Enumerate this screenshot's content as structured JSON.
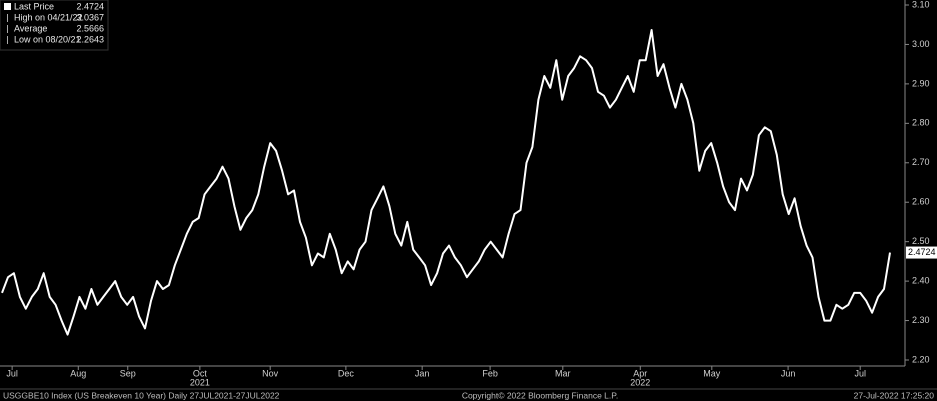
{
  "chart_data": {
    "type": "line",
    "legend": [
      {
        "label": "Last Price",
        "value": 2.4724
      },
      {
        "label": "High on 04/21/22",
        "value": 3.0367
      },
      {
        "label": "Average",
        "value": 2.5666
      },
      {
        "label": "Low on 08/20/21",
        "value": 2.2643
      }
    ],
    "color": "#ffffff",
    "values": [
      2.37,
      2.41,
      2.42,
      2.36,
      2.33,
      2.36,
      2.38,
      2.42,
      2.36,
      2.34,
      2.3,
      2.2643,
      2.31,
      2.36,
      2.33,
      2.38,
      2.34,
      2.36,
      2.38,
      2.4,
      2.36,
      2.34,
      2.36,
      2.31,
      2.28,
      2.35,
      2.4,
      2.38,
      2.39,
      2.44,
      2.48,
      2.52,
      2.55,
      2.56,
      2.62,
      2.64,
      2.66,
      2.69,
      2.66,
      2.59,
      2.53,
      2.56,
      2.58,
      2.62,
      2.69,
      2.75,
      2.73,
      2.68,
      2.62,
      2.63,
      2.55,
      2.51,
      2.44,
      2.47,
      2.46,
      2.52,
      2.48,
      2.42,
      2.45,
      2.43,
      2.48,
      2.5,
      2.58,
      2.61,
      2.64,
      2.59,
      2.52,
      2.49,
      2.55,
      2.48,
      2.46,
      2.44,
      2.39,
      2.42,
      2.47,
      2.49,
      2.46,
      2.44,
      2.41,
      2.43,
      2.45,
      2.48,
      2.5,
      2.48,
      2.46,
      2.52,
      2.57,
      2.58,
      2.7,
      2.74,
      2.86,
      2.92,
      2.89,
      2.96,
      2.86,
      2.92,
      2.94,
      2.97,
      2.96,
      2.94,
      2.88,
      2.87,
      2.84,
      2.86,
      2.89,
      2.92,
      2.88,
      2.96,
      2.96,
      3.0367,
      2.92,
      2.95,
      2.89,
      2.84,
      2.9,
      2.86,
      2.8,
      2.68,
      2.73,
      2.75,
      2.7,
      2.64,
      2.6,
      2.58,
      2.66,
      2.63,
      2.67,
      2.77,
      2.79,
      2.78,
      2.72,
      2.62,
      2.57,
      2.61,
      2.54,
      2.49,
      2.46,
      2.36,
      2.3,
      2.3,
      2.34,
      2.33,
      2.34,
      2.37,
      2.37,
      2.35,
      2.32,
      2.36,
      2.38,
      2.4724
    ],
    "xlim": [
      0,
      149
    ],
    "xticks": [
      {
        "value": 1.7,
        "label": "Jul"
      },
      {
        "value": 12.8,
        "label": "Aug"
      },
      {
        "value": 21.1,
        "label": "Sep"
      },
      {
        "value": 33.2,
        "label": "Oct"
      },
      {
        "value": 45,
        "label": "Nov"
      },
      {
        "value": 57.7,
        "label": "Dec"
      },
      {
        "value": 70.5,
        "label": "Jan"
      },
      {
        "value": 81.9,
        "label": "Feb"
      },
      {
        "value": 94.1,
        "label": "Mar"
      },
      {
        "value": 107.1,
        "label": "Apr"
      },
      {
        "value": 119.1,
        "label": "May"
      },
      {
        "value": 131.9,
        "label": "Jun"
      },
      {
        "value": 144,
        "label": "Jul"
      }
    ],
    "year_labels": [
      {
        "value": 33.2,
        "label": "2021"
      },
      {
        "value": 107.1,
        "label": "2022"
      }
    ],
    "ylim": [
      2.2,
      3.1
    ],
    "yticks": [
      {
        "value": 2.2,
        "label": "2.20"
      },
      {
        "value": 2.3,
        "label": "2.30"
      },
      {
        "value": 2.4,
        "label": "2.40"
      },
      {
        "value": 2.5,
        "label": "2.50"
      },
      {
        "value": 2.6,
        "label": "2.60"
      },
      {
        "value": 2.7,
        "label": "2.70"
      },
      {
        "value": 2.8,
        "label": "2.80"
      },
      {
        "value": 2.9,
        "label": "2.90"
      },
      {
        "value": 3.0,
        "label": "3.00"
      },
      {
        "value": 3.1,
        "label": "3.10"
      }
    ],
    "footer": [
      "USGGBE10 Index (US Breakeven 10 Year)  Daily 27JUL2021-27JUL2022",
      "Copyright© 2022 Bloomberg Finance L.P.",
      "27-Jul-2022 17:25:20"
    ]
  }
}
